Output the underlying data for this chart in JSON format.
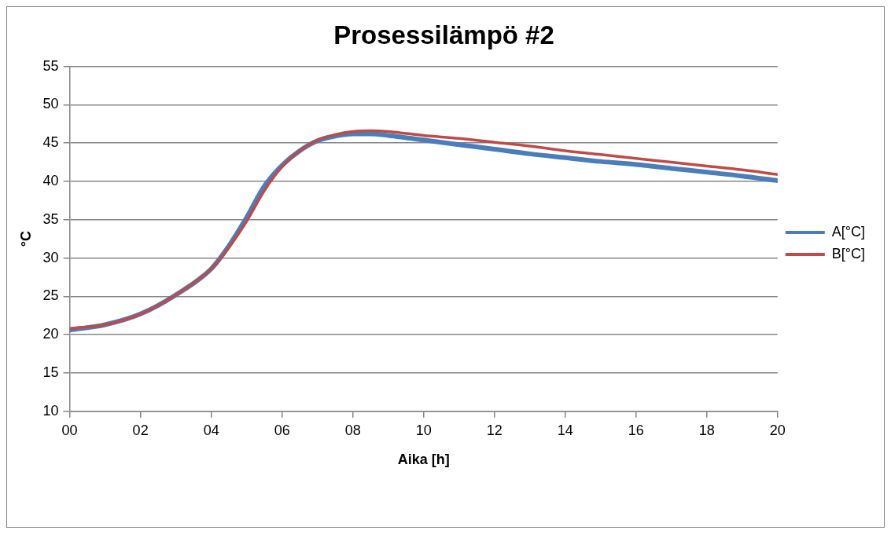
{
  "chart_data": {
    "type": "line",
    "title": "Prosessilämpö #2",
    "xlabel": "Aika [h]",
    "ylabel": "°C",
    "x": [
      0,
      1,
      2,
      3,
      4,
      4.5,
      5,
      5.5,
      6,
      6.5,
      7,
      7.5,
      8,
      8.5,
      9,
      10,
      11,
      12,
      13,
      14,
      15,
      16,
      17,
      18,
      19,
      20
    ],
    "series": [
      {
        "name": "A[°C]",
        "color": "#4a7ebb",
        "values": [
          20.6,
          21.3,
          22.7,
          25.2,
          28.6,
          31.6,
          35.3,
          39.4,
          42.1,
          44.0,
          45.3,
          45.9,
          46.2,
          46.2,
          46.0,
          45.4,
          44.8,
          44.2,
          43.6,
          43.1,
          42.6,
          42.2,
          41.7,
          41.2,
          40.7,
          40.1
        ]
      },
      {
        "name": "B[°C]",
        "color": "#be4b48",
        "values": [
          20.8,
          21.3,
          22.7,
          25.2,
          28.6,
          31.4,
          34.8,
          38.8,
          41.9,
          44.0,
          45.4,
          46.1,
          46.5,
          46.6,
          46.5,
          46.0,
          45.6,
          45.1,
          44.6,
          44.0,
          43.5,
          43.0,
          42.5,
          42.0,
          41.5,
          40.9
        ]
      }
    ],
    "xlim": [
      0,
      20
    ],
    "xticks": [
      {
        "value": 0,
        "label": "00"
      },
      {
        "value": 2,
        "label": "02"
      },
      {
        "value": 4,
        "label": "04"
      },
      {
        "value": 6,
        "label": "06"
      },
      {
        "value": 8,
        "label": "08"
      },
      {
        "value": 10,
        "label": "10"
      },
      {
        "value": 12,
        "label": "12"
      },
      {
        "value": 14,
        "label": "14"
      },
      {
        "value": 16,
        "label": "16"
      },
      {
        "value": 18,
        "label": "18"
      },
      {
        "value": 20,
        "label": "20"
      }
    ],
    "ylim": [
      10,
      55
    ],
    "yticks": [
      10,
      15,
      20,
      25,
      30,
      35,
      40,
      45,
      50,
      55
    ],
    "grid": "y",
    "legend": "right",
    "marker": "none",
    "line_style": "solid"
  }
}
